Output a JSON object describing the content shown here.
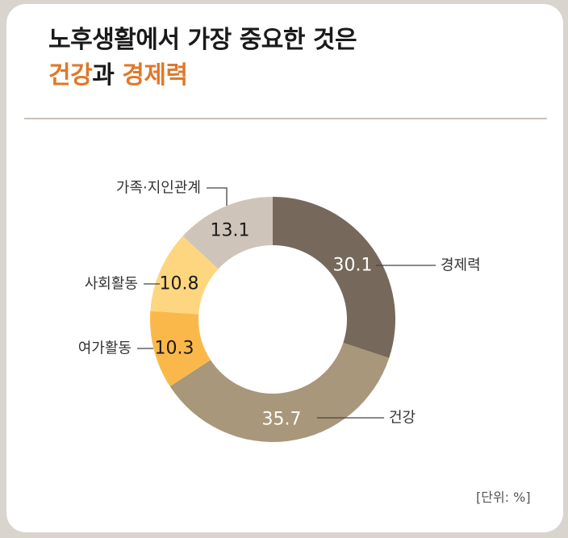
{
  "title": {
    "line1": "노후생활에서 가장 중요한 것은",
    "line2_accent1": "건강",
    "line2_mid": "과 ",
    "line2_accent2": "경제력"
  },
  "unit_label": "[단위: %]",
  "colors": {
    "accent": "#e0782a"
  },
  "chart_data": {
    "type": "pie",
    "donut": true,
    "categories": [
      "경제력",
      "건강",
      "여가활동",
      "사회활동",
      "가족·지인관계"
    ],
    "values": [
      30.1,
      35.7,
      10.3,
      10.8,
      13.1
    ],
    "value_labels": [
      "30.1",
      "35.7",
      "10.3",
      "10.8",
      "13.1"
    ],
    "colors": [
      "#76695b",
      "#a8977a",
      "#fbb84a",
      "#fed67f",
      "#cec4ba"
    ],
    "unit": "%"
  }
}
